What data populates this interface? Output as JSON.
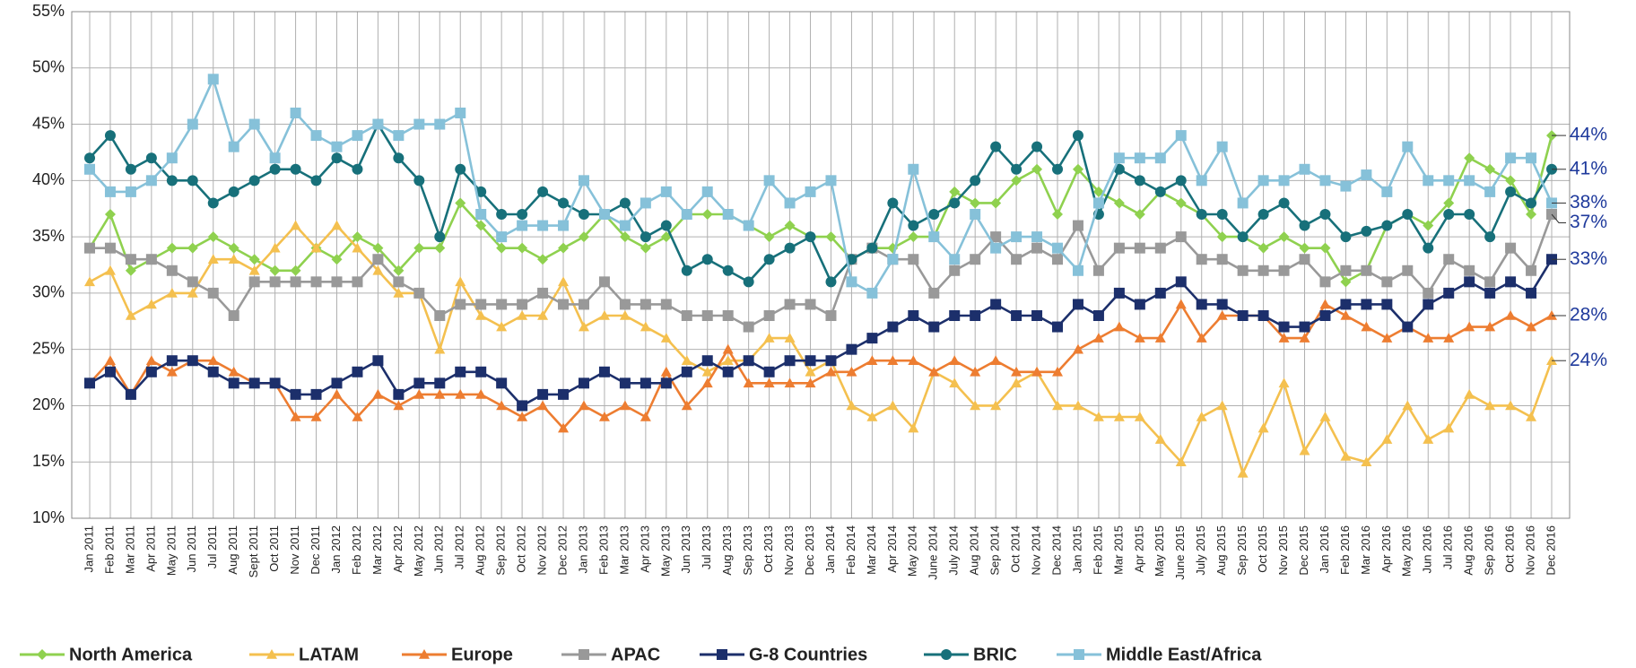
{
  "chart_data": {
    "type": "line",
    "categories": [
      "Jan 2011",
      "Feb 2011",
      "Mar 2011",
      "Apr 2011",
      "May 2011",
      "Jun 2011",
      "Jul 2011",
      "Aug 2011",
      "Sept 2011",
      "Oct 2011",
      "Nov 2011",
      "Dec 2011",
      "Jan 2012",
      "Feb 2012",
      "Mar 2012",
      "Apr 2012",
      "May 2012",
      "Jun 2012",
      "Jul 2012",
      "Aug 2012",
      "Sep 2012",
      "Oct 2012",
      "Nov 2012",
      "Dec 2012",
      "Jan 2013",
      "Feb 2013",
      "Mar 2013",
      "Apr 2013",
      "May 2013",
      "Jun 2013",
      "Jul 2013",
      "Aug 2013",
      "Sep 2013",
      "Oct 2013",
      "Nov 2013",
      "Dec 2013",
      "Jan 2014",
      "Feb 2014",
      "Mar 2014",
      "Apr 2014",
      "May 2014",
      "June 2014",
      "July 2014",
      "Aug 2014",
      "Sep 2014",
      "Oct 2014",
      "Nov 2014",
      "Dec 2014",
      "Jan 2015",
      "Feb 2015",
      "Mar 2015",
      "Apr 2015",
      "May 2015",
      "June 2015",
      "July 2015",
      "Aug 2015",
      "Sep 2015",
      "Oct 2015",
      "Nov 2015",
      "Dec 2015",
      "Jan 2016",
      "Feb 2016",
      "Mar 2016",
      "Apr 2016",
      "May 2016",
      "Jun 2016",
      "Jul 2016",
      "Aug 2016",
      "Sep 2016",
      "Oct 2016",
      "Nov 2016",
      "Dec 2016"
    ],
    "series": [
      {
        "name": "North America",
        "color": "#8fd14f",
        "marker": "diamond",
        "end_label": "44%",
        "values": [
          34,
          37,
          32,
          33,
          34,
          34,
          35,
          34,
          33,
          32,
          32,
          34,
          33,
          35,
          34,
          32,
          34,
          34,
          38,
          36,
          34,
          34,
          33,
          34,
          35,
          37,
          35,
          34,
          35,
          37,
          37,
          37,
          36,
          35,
          36,
          35,
          35,
          33,
          34,
          34,
          35,
          35,
          39,
          38,
          38,
          40,
          41,
          37,
          41,
          39,
          38,
          37,
          39,
          38,
          37,
          35,
          35,
          34,
          35,
          34,
          34,
          31,
          32,
          36,
          37,
          36,
          38,
          42,
          41,
          40,
          37,
          44
        ]
      },
      {
        "name": "LATAM",
        "color": "#f4c04f",
        "marker": "triangle",
        "end_label": "24%",
        "values": [
          31,
          32,
          28,
          29,
          30,
          30,
          33,
          33,
          32,
          34,
          36,
          34,
          36,
          34,
          32,
          30,
          30,
          25,
          31,
          28,
          27,
          28,
          28,
          31,
          27,
          28,
          28,
          27,
          26,
          24,
          23,
          24,
          24,
          26,
          26,
          23,
          24,
          20,
          19,
          20,
          18,
          23,
          22,
          20,
          20,
          22,
          23,
          20,
          20,
          19,
          19,
          19,
          17,
          15,
          19,
          20,
          14,
          18,
          22,
          16,
          19,
          15.5,
          15,
          17,
          20,
          17,
          18,
          21,
          20,
          20,
          19,
          24
        ]
      },
      {
        "name": "Europe",
        "color": "#ed7d31",
        "marker": "triangle",
        "end_label": "28%",
        "values": [
          22,
          24,
          21,
          24,
          23,
          24,
          24,
          23,
          22,
          22,
          19,
          19,
          21,
          19,
          21,
          20,
          21,
          21,
          21,
          21,
          20,
          19,
          20,
          18,
          20,
          19,
          20,
          19,
          23,
          20,
          22,
          25,
          22,
          22,
          22,
          22,
          23,
          23,
          24,
          24,
          24,
          23,
          24,
          23,
          24,
          23,
          23,
          23,
          25,
          26,
          27,
          26,
          26,
          29,
          26,
          28,
          28,
          28,
          26,
          26,
          29,
          28,
          27,
          26,
          27,
          26,
          26,
          27,
          27,
          28,
          27,
          28
        ]
      },
      {
        "name": "APAC",
        "color": "#999999",
        "marker": "square",
        "end_label": "37%",
        "values": [
          34,
          34,
          33,
          33,
          32,
          31,
          30,
          28,
          31,
          31,
          31,
          31,
          31,
          31,
          33,
          31,
          30,
          28,
          29,
          29,
          29,
          29,
          30,
          29,
          29,
          31,
          29,
          29,
          29,
          28,
          28,
          28,
          27,
          28,
          29,
          29,
          28,
          33,
          34,
          33,
          33,
          30,
          32,
          33,
          35,
          33,
          34,
          33,
          36,
          32,
          34,
          34,
          34,
          35,
          33,
          33,
          32,
          32,
          32,
          33,
          31,
          32,
          32,
          31,
          32,
          30,
          33,
          32,
          31,
          34,
          32,
          37
        ]
      },
      {
        "name": "G-8 Countries",
        "color": "#1c2f6b",
        "marker": "square",
        "end_label": "33%",
        "values": [
          22,
          23,
          21,
          23,
          24,
          24,
          23,
          22,
          22,
          22,
          21,
          21,
          22,
          23,
          24,
          21,
          22,
          22,
          23,
          23,
          22,
          20,
          21,
          21,
          22,
          23,
          22,
          22,
          22,
          23,
          24,
          23,
          24,
          23,
          24,
          24,
          24,
          25,
          26,
          27,
          28,
          27,
          28,
          28,
          29,
          28,
          28,
          27,
          29,
          28,
          30,
          29,
          30,
          31,
          29,
          29,
          28,
          28,
          27,
          27,
          28,
          29,
          29,
          29,
          27,
          29,
          30,
          31,
          30,
          31,
          30,
          33
        ]
      },
      {
        "name": "BRIC",
        "color": "#17707a",
        "marker": "circle",
        "end_label": "41%",
        "values": [
          42,
          44,
          41,
          42,
          40,
          40,
          38,
          39,
          40,
          41,
          41,
          40,
          42,
          41,
          45,
          42,
          40,
          35,
          41,
          39,
          37,
          37,
          39,
          38,
          37,
          37,
          38,
          35,
          36,
          32,
          33,
          32,
          31,
          33,
          34,
          35,
          31,
          33,
          34,
          38,
          36,
          37,
          38,
          40,
          43,
          41,
          43,
          41,
          44,
          37,
          41,
          40,
          39,
          40,
          37,
          37,
          35,
          37,
          38,
          36,
          37,
          35,
          35.5,
          36,
          37,
          34,
          37,
          37,
          35,
          39,
          38,
          41
        ]
      },
      {
        "name": "Middle East/Africa",
        "color": "#86c1d9",
        "marker": "square",
        "end_label": "38%",
        "values": [
          41,
          39,
          39,
          40,
          42,
          45,
          49,
          43,
          45,
          42,
          46,
          44,
          43,
          44,
          45,
          44,
          45,
          45,
          46,
          37,
          35,
          36,
          36,
          36,
          40,
          37,
          36,
          38,
          39,
          37,
          39,
          37,
          36,
          40,
          38,
          39,
          40,
          31,
          30,
          33,
          41,
          35,
          33,
          37,
          34,
          35,
          35,
          34,
          32,
          38,
          42,
          42,
          42,
          44,
          40,
          43,
          38,
          40,
          40,
          41,
          40,
          39.5,
          40.5,
          39,
          43,
          40,
          40,
          40,
          39,
          42,
          42,
          38
        ]
      }
    ],
    "ylim": [
      10,
      55
    ],
    "yticks": [
      {
        "value": 10,
        "label": "10%"
      },
      {
        "value": 15,
        "label": "15%"
      },
      {
        "value": 20,
        "label": "20%"
      },
      {
        "value": 25,
        "label": "25%"
      },
      {
        "value": 30,
        "label": "30%"
      },
      {
        "value": 35,
        "label": "35%"
      },
      {
        "value": 40,
        "label": "40%"
      },
      {
        "value": 45,
        "label": "45%"
      },
      {
        "value": 50,
        "label": "50%"
      },
      {
        "value": 55,
        "label": "55%"
      }
    ],
    "grid": true
  }
}
